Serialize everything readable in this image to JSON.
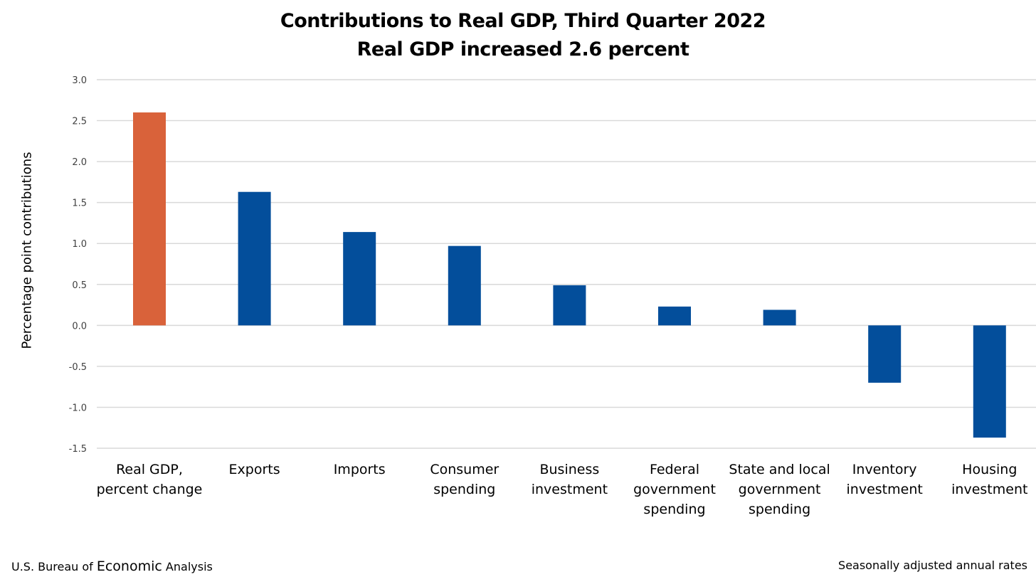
{
  "chart_data": {
    "type": "bar",
    "title": "Contributions to Real GDP, Third Quarter 2022",
    "subtitle": "Real GDP increased 2.6 percent",
    "ylabel": "Percentage point contributions",
    "xlabel": "",
    "ylim": [
      -1.5,
      3.0
    ],
    "ytick_step": 0.5,
    "yticks": [
      "3.0",
      "2.5",
      "2.0",
      "1.5",
      "1.0",
      "0.5",
      "0.0",
      "-0.5",
      "-1.0",
      "-1.5"
    ],
    "grid": true,
    "categories": [
      [
        "Real GDP,",
        "percent change"
      ],
      [
        "Exports"
      ],
      [
        "Imports"
      ],
      [
        "Consumer",
        "spending"
      ],
      [
        "Business",
        "investment"
      ],
      [
        "Federal",
        "government",
        "spending"
      ],
      [
        "State and local",
        "government",
        "spending"
      ],
      [
        "Inventory",
        "investment"
      ],
      [
        "Housing",
        "investment"
      ]
    ],
    "values": [
      2.6,
      1.63,
      1.14,
      0.97,
      0.49,
      0.23,
      0.19,
      -0.7,
      -1.37
    ],
    "colors": [
      "#D9623A",
      "#034E9B",
      "#034E9B",
      "#034E9B",
      "#034E9B",
      "#034E9B",
      "#034E9B",
      "#034E9B",
      "#034E9B"
    ]
  },
  "footer": {
    "source_prefix": "U.S. Bureau of ",
    "source_emphasis": "Economic",
    "source_suffix": " Analysis",
    "note": "Seasonally adjusted annual rates"
  }
}
